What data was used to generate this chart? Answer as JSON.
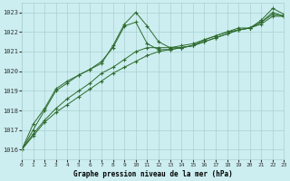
{
  "title": "Graphe pression niveau de la mer (hPa)",
  "bg_color": "#cceef0",
  "grid_color": "#aad0d0",
  "line_color": "#2d6a2d",
  "xlim": [
    0,
    23
  ],
  "ylim": [
    1015.5,
    1023.5
  ],
  "yticks": [
    1016,
    1017,
    1018,
    1019,
    1020,
    1021,
    1022,
    1023
  ],
  "xticks": [
    0,
    1,
    2,
    3,
    4,
    5,
    6,
    7,
    8,
    9,
    10,
    11,
    12,
    13,
    14,
    15,
    16,
    17,
    18,
    19,
    20,
    21,
    22,
    23
  ],
  "series": [
    [
      1016.0,
      1016.7,
      1017.4,
      1017.9,
      1018.3,
      1018.7,
      1019.1,
      1019.5,
      1019.9,
      1020.2,
      1020.5,
      1020.8,
      1021.0,
      1021.1,
      1021.2,
      1021.3,
      1021.5,
      1021.7,
      1021.9,
      1022.1,
      1022.2,
      1022.4,
      1022.8,
      1022.8
    ],
    [
      1016.0,
      1016.8,
      1017.5,
      1018.1,
      1018.6,
      1019.0,
      1019.4,
      1019.9,
      1020.2,
      1020.6,
      1021.0,
      1021.2,
      1021.2,
      1021.2,
      1021.3,
      1021.4,
      1021.6,
      1021.8,
      1022.0,
      1022.1,
      1022.2,
      1022.5,
      1022.9,
      1022.8
    ],
    [
      1016.0,
      1017.0,
      1018.0,
      1019.0,
      1019.4,
      1019.8,
      1020.1,
      1020.5,
      1021.2,
      1022.3,
      1022.5,
      1021.4,
      1021.1,
      1021.1,
      1021.2,
      1021.3,
      1021.5,
      1021.7,
      1021.9,
      1022.1,
      1022.2,
      1022.5,
      1023.0,
      1022.8
    ],
    [
      1016.0,
      1017.3,
      1018.1,
      1019.1,
      1019.5,
      1019.8,
      1020.1,
      1020.4,
      1021.3,
      1022.4,
      1023.0,
      1022.3,
      1021.5,
      1021.2,
      1021.2,
      1021.3,
      1021.6,
      1021.8,
      1022.0,
      1022.2,
      1022.2,
      1022.6,
      1023.2,
      1022.9
    ]
  ]
}
